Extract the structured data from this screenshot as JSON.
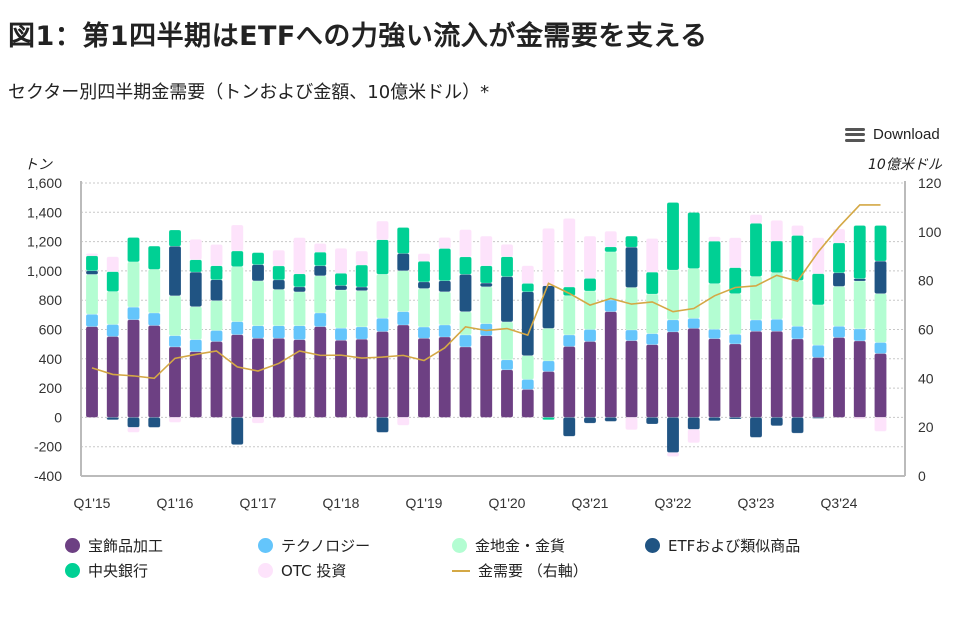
{
  "title": "図1：第1四半期はETFへの力強い流入が金需要を支える",
  "subtitle": "セクター別四半期金需要（トンおよび金額、10億米ドル）*",
  "download_label": "Download",
  "icons": {
    "download": "hamburger-menu-icon"
  },
  "chart_data": {
    "type": "bar",
    "stacked": true,
    "left_axis": {
      "unit": "トン",
      "range": [
        -400,
        1600
      ],
      "ticks": [
        "-400",
        "-200",
        "0",
        "200",
        "400",
        "600",
        "800",
        "1,000",
        "1,200",
        "1,400",
        "1,600"
      ]
    },
    "right_axis": {
      "unit": "10億米ドル",
      "range": [
        0,
        120
      ],
      "ticks": [
        "0",
        "20",
        "40",
        "60",
        "80",
        "100",
        "120"
      ]
    },
    "grid": true,
    "legend_position": "bottom",
    "x_ticks": [
      {
        "index": 0,
        "label": "Q1'15"
      },
      {
        "index": 4,
        "label": "Q1'16"
      },
      {
        "index": 8,
        "label": "Q1'17"
      },
      {
        "index": 12,
        "label": "Q1'18"
      },
      {
        "index": 16,
        "label": "Q1'19"
      },
      {
        "index": 20,
        "label": "Q1'20"
      },
      {
        "index": 24,
        "label": "Q3'21"
      },
      {
        "index": 28,
        "label": "Q3'22"
      },
      {
        "index": 32,
        "label": "Q3'23"
      },
      {
        "index": 36,
        "label": "Q3'24"
      }
    ],
    "series": [
      {
        "name": "宝飾品加工",
        "color": "#6d4083",
        "values": [
          620,
          552,
          667,
          627,
          481,
          449,
          518,
          565,
          540,
          540,
          531,
          620,
          527,
          534,
          586,
          631,
          540,
          549,
          481,
          558,
          325,
          191,
          313,
          484,
          518,
          722,
          524,
          497,
          584,
          608,
          538,
          502,
          588,
          588,
          536,
          409,
          545,
          522,
          436
        ]
      },
      {
        "name": "テクノロジー",
        "color": "#64c5fb",
        "values": [
          84,
          82,
          86,
          86,
          77,
          82,
          75,
          89,
          86,
          86,
          95,
          93,
          82,
          84,
          91,
          91,
          77,
          82,
          82,
          82,
          68,
          68,
          73,
          79,
          82,
          79,
          73,
          75,
          82,
          68,
          64,
          66,
          77,
          82,
          86,
          84,
          77,
          82,
          75
        ]
      },
      {
        "name": "金地金・金貨",
        "color": "#b3fdd2",
        "values": [
          272,
          225,
          309,
          297,
          272,
          225,
          204,
          375,
          306,
          247,
          231,
          254,
          261,
          247,
          300,
          279,
          263,
          227,
          159,
          252,
          259,
          163,
          222,
          268,
          263,
          329,
          290,
          270,
          340,
          340,
          311,
          277,
          297,
          318,
          313,
          275,
          272,
          327,
          334
        ]
      },
      {
        "name": "ETFおよび類似商品",
        "color": "#205483",
        "values": [
          25,
          -16,
          -68,
          -68,
          338,
          236,
          143,
          -186,
          111,
          66,
          34,
          68,
          30,
          25,
          -102,
          118,
          45,
          75,
          254,
          25,
          309,
          436,
          291,
          -129,
          -39,
          -27,
          275,
          -45,
          -240,
          -82,
          -23,
          -11,
          -136,
          -57,
          -107,
          -7,
          93,
          16,
          222
        ]
      },
      {
        "name": "中央銀行",
        "color": "#00d094",
        "values": [
          102,
          136,
          166,
          159,
          111,
          84,
          95,
          107,
          82,
          95,
          89,
          93,
          84,
          150,
          236,
          177,
          141,
          220,
          120,
          118,
          136,
          57,
          -16,
          59,
          86,
          34,
          75,
          150,
          461,
          383,
          290,
          177,
          363,
          216,
          307,
          213,
          204,
          363,
          243
        ]
      },
      {
        "name": "OTC 投資",
        "color": "#fde3fb",
        "values": [
          16,
          102,
          -34,
          0,
          -34,
          139,
          145,
          177,
          -39,
          107,
          247,
          59,
          170,
          95,
          127,
          -54,
          52,
          75,
          186,
          202,
          84,
          120,
          391,
          468,
          288,
          107,
          -84,
          229,
          -27,
          -91,
          30,
          204,
          59,
          141,
          68,
          245,
          95,
          -11,
          -95
        ]
      }
    ],
    "line": {
      "name": "金需要 （右軸）",
      "color": "#d4a845",
      "axis": "right",
      "values": [
        44.3,
        41.6,
        41,
        40,
        48.2,
        49.8,
        51.2,
        44.7,
        43,
        46.1,
        51.2,
        49.4,
        49.5,
        48.3,
        48.7,
        49.4,
        47.3,
        52.5,
        61.1,
        59.6,
        60.4,
        57.7,
        78.9,
        74.8,
        70,
        72.7,
        70.4,
        71.3,
        67.3,
        68.6,
        73.8,
        77.2,
        77.9,
        82.2,
        79.8,
        91.8,
        102,
        111,
        111
      ]
    }
  }
}
